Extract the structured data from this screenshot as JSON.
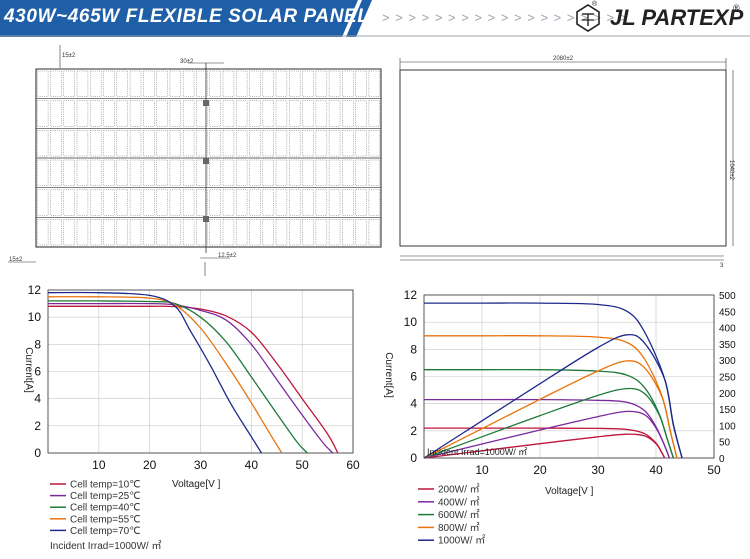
{
  "header": {
    "title": "430W~465W FLEXIBLE SOLAR PANEL",
    "chevrons": "> > > > > > > > > > > > > > > > > > >",
    "brand": "JL PARTEXP",
    "reg_mark": "®",
    "colors": {
      "banner": "#1f5fa8",
      "brand_text": "#222222"
    }
  },
  "drawing": {
    "front_dims": {
      "top_margin": "15±2",
      "frame_gap": "30±2",
      "left_margin": "15±2",
      "bottom_gap": "12.5±2"
    },
    "side_dims": {
      "width": "2080±2",
      "height": "1040±2"
    },
    "grid": {
      "cell_columns": 26,
      "cell_rows": 6
    }
  },
  "chart_data": [
    {
      "type": "line",
      "title": "",
      "xlabel": "Voltage[V ]",
      "ylabel": "Current[A]",
      "xlim": [
        0,
        60
      ],
      "ylim": [
        0,
        12
      ],
      "xticks": [
        "10",
        "20",
        "30",
        "40",
        "50",
        "60"
      ],
      "yticks": [
        "0",
        "2",
        "4",
        "6",
        "8",
        "10",
        "12"
      ],
      "grid": true,
      "legend_position": "bottom-left",
      "legend_footer": "Incident Irrad=1000W/ ㎡",
      "series": [
        {
          "name": "Cell temp=10℃",
          "color": "#c0143c",
          "x": [
            0,
            10,
            20,
            25,
            30,
            35,
            40,
            45,
            50,
            55,
            57
          ],
          "y": [
            10.8,
            10.8,
            10.8,
            10.78,
            10.6,
            10.1,
            8.9,
            6.6,
            4.0,
            1.4,
            0
          ]
        },
        {
          "name": "Cell temp=25℃",
          "color": "#7b2a9e",
          "x": [
            0,
            10,
            20,
            25,
            30,
            35,
            40,
            45,
            50,
            54,
            56
          ],
          "y": [
            11.0,
            11.0,
            11.0,
            10.9,
            10.5,
            9.8,
            8.0,
            5.4,
            2.8,
            0.8,
            0
          ]
        },
        {
          "name": "Cell temp=40℃",
          "color": "#1f7a3a",
          "x": [
            0,
            10,
            20,
            25,
            30,
            35,
            40,
            45,
            49,
            51
          ],
          "y": [
            11.2,
            11.2,
            11.15,
            11.0,
            10.0,
            8.2,
            5.6,
            2.9,
            0.8,
            0
          ]
        },
        {
          "name": "Cell temp=55℃",
          "color": "#e8730c",
          "x": [
            0,
            10,
            20,
            25,
            30,
            35,
            40,
            44,
            46
          ],
          "y": [
            11.5,
            11.5,
            11.4,
            10.9,
            9.2,
            6.6,
            3.7,
            1.2,
            0
          ]
        },
        {
          "name": "Cell temp=70℃",
          "color": "#1d2a8c",
          "x": [
            0,
            10,
            20,
            25,
            28,
            32,
            36,
            40,
            42
          ],
          "y": [
            11.8,
            11.8,
            11.6,
            10.8,
            9.0,
            6.4,
            3.6,
            1.2,
            0
          ]
        }
      ]
    },
    {
      "type": "line",
      "title": "",
      "xlabel": "Voltage[V ]",
      "ylabel": "Current[A]",
      "y2label": "",
      "xlim": [
        0,
        50
      ],
      "ylim": [
        0,
        12
      ],
      "y2lim": [
        0,
        500
      ],
      "xticks": [
        "10",
        "20",
        "30",
        "40",
        "50"
      ],
      "yticks": [
        "0",
        "2",
        "4",
        "6",
        "8",
        "10",
        "12"
      ],
      "y2ticks": [
        "0",
        "50",
        "100",
        "150",
        "200",
        "250",
        "300",
        "350",
        "400",
        "450",
        "500"
      ],
      "grid": true,
      "annotation": "Incident Irrad=1000W/ ㎡",
      "legend_position": "bottom-left",
      "series": [
        {
          "name": "200W/ ㎡",
          "color": "#c0143c",
          "kind": "current",
          "x": [
            0,
            10,
            20,
            30,
            35,
            38,
            40,
            41,
            41.5
          ],
          "y": [
            2.2,
            2.2,
            2.2,
            2.18,
            2.1,
            1.8,
            1.1,
            0.4,
            0
          ]
        },
        {
          "name": "200W/ ㎡",
          "color": "#c0143c",
          "kind": "power",
          "x": [
            0,
            10,
            20,
            30,
            35,
            38,
            40,
            41,
            41.5
          ],
          "y": [
            0,
            22,
            44,
            65,
            73,
            68,
            44,
            16,
            0
          ]
        },
        {
          "name": "400W/ ㎡",
          "color": "#7b2a9e",
          "kind": "current",
          "x": [
            0,
            10,
            20,
            30,
            35,
            38,
            40,
            41.5,
            42.3
          ],
          "y": [
            4.3,
            4.3,
            4.3,
            4.25,
            4.1,
            3.5,
            2.3,
            0.9,
            0
          ]
        },
        {
          "name": "400W/ ㎡",
          "color": "#7b2a9e",
          "kind": "power",
          "x": [
            0,
            10,
            20,
            30,
            35,
            38,
            40,
            41.5,
            42.3
          ],
          "y": [
            0,
            43,
            86,
            127,
            143,
            133,
            92,
            37,
            0
          ]
        },
        {
          "name": "600W/ ㎡",
          "color": "#1f7a3a",
          "kind": "current",
          "x": [
            0,
            10,
            20,
            30,
            35,
            38,
            40.5,
            42,
            43
          ],
          "y": [
            6.5,
            6.5,
            6.5,
            6.4,
            6.1,
            5.2,
            3.3,
            1.3,
            0
          ]
        },
        {
          "name": "600W/ ㎡",
          "color": "#1f7a3a",
          "kind": "power",
          "x": [
            0,
            10,
            20,
            30,
            35,
            38,
            40.5,
            42,
            43
          ],
          "y": [
            0,
            65,
            130,
            192,
            213,
            198,
            134,
            55,
            0
          ]
        },
        {
          "name": "800W/ ㎡",
          "color": "#e8730c",
          "kind": "current",
          "x": [
            0,
            10,
            20,
            30,
            35,
            38,
            41,
            42.5,
            43.6
          ],
          "y": [
            9.0,
            9.0,
            9.0,
            8.9,
            8.5,
            7.3,
            4.6,
            1.9,
            0
          ]
        },
        {
          "name": "800W/ ㎡",
          "color": "#e8730c",
          "kind": "power",
          "x": [
            0,
            10,
            20,
            30,
            35,
            38,
            41,
            42.5,
            43.6
          ],
          "y": [
            0,
            90,
            180,
            267,
            298,
            277,
            189,
            81,
            0
          ]
        },
        {
          "name": "1000W/ ㎡",
          "color": "#1d2a8c",
          "kind": "current",
          "x": [
            0,
            10,
            20,
            30,
            35,
            38,
            41.5,
            43,
            44.5
          ],
          "y": [
            11.4,
            11.4,
            11.4,
            11.3,
            10.8,
            9.3,
            5.8,
            2.4,
            0
          ]
        },
        {
          "name": "1000W/ ㎡",
          "color": "#1d2a8c",
          "kind": "power",
          "x": [
            0,
            10,
            20,
            30,
            35,
            38,
            41.5,
            43,
            44.5
          ],
          "y": [
            0,
            114,
            228,
            339,
            378,
            353,
            241,
            103,
            0
          ]
        }
      ]
    }
  ]
}
